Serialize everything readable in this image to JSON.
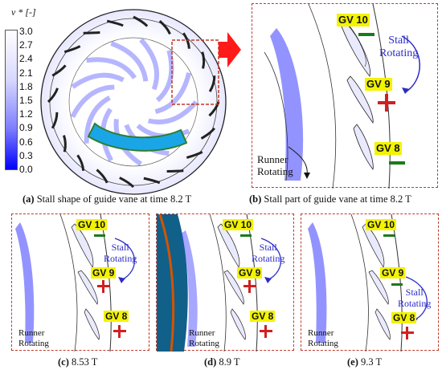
{
  "colorbar": {
    "title": "v * [-]",
    "ticks": [
      "3.0",
      "2.7",
      "2.4",
      "2.1",
      "1.8",
      "1.5",
      "1.2",
      "0.9",
      "0.6",
      "0.3",
      "0.0"
    ],
    "gradient_top": "#ffffff",
    "gradient_bottom": "#0000ff"
  },
  "colors": {
    "frame": "#c0392b",
    "vortex_blue": "#3b3bff",
    "arrow_red": "#ff1a1a",
    "stall_arrow": "#2c2cc8",
    "cyan_wedge": "#1aa6e6",
    "minus_green": "#1b7a1b",
    "plus_red": "#d02020",
    "label_yellow": "#f3f300"
  },
  "panel_b": {
    "gv10": "GV 10",
    "gv9": "GV 9",
    "gv8": "GV 8",
    "stall_line1": "Stall",
    "stall_line2": "Rotating",
    "runner_line1": "Runner",
    "runner_line2": "Rotating",
    "signs": [
      "minus",
      "plus",
      "minus"
    ]
  },
  "panel_c": {
    "gv10": "GV 10",
    "gv9": "GV 9",
    "gv8": "GV 8",
    "stall_line1": "Stall",
    "stall_line2": "Rotating",
    "runner_line1": "Runner",
    "runner_line2": "Rotating",
    "signs": [
      "minus",
      "plus",
      "plus"
    ]
  },
  "panel_d": {
    "gv10": "GV 10",
    "gv9": "GV 9",
    "gv8": "GV 8",
    "stall_line1": "Stall",
    "stall_line2": "Rotating",
    "runner_line1": "Runner",
    "runner_line2": "Rotating",
    "signs": [
      "minus",
      "plus",
      "plus"
    ]
  },
  "panel_e": {
    "gv10": "GV 10",
    "gv9": "GV 9",
    "gv8": "GV 8",
    "stall_line1": "Stall",
    "stall_line2": "Rotating",
    "runner_line1": "Runner",
    "runner_line2": "Rotating",
    "signs": [
      "minus",
      "minus",
      "plus"
    ]
  },
  "captions": {
    "a_letter": "(a)",
    "a_text": " Stall shape of guide vane at time 8.2 T",
    "b_letter": "(b)",
    "b_text": " Stall part of guide vane at time 8.2 T",
    "c_letter": "(c)",
    "c_text": " 8.53 T",
    "d_letter": "(d)",
    "d_text": " 8.9 T",
    "e_letter": "(e)",
    "e_text": " 9.3 T"
  }
}
